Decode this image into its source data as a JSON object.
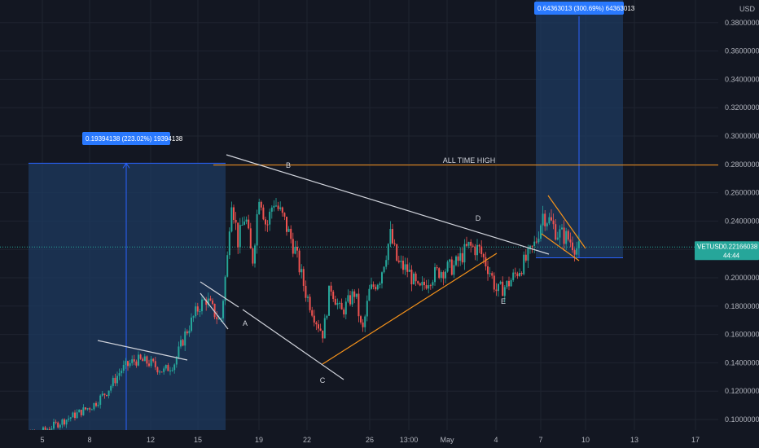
{
  "chart_data": {
    "type": "candlestick",
    "symbol": "VETUSD",
    "currency": "USD",
    "countdown": "44:44",
    "last_price": 0.22166038,
    "ylim": [
      0.08,
      0.38
    ],
    "x_ticks": [
      "5",
      "8",
      "12",
      "15",
      "19",
      "22",
      "26",
      "13:00",
      "May",
      "4",
      "7",
      "10",
      "13",
      "17"
    ],
    "y_ticks": [
      {
        "value": 0.1,
        "label": "0.10000000"
      },
      {
        "value": 0.12,
        "label": "0.12000000"
      },
      {
        "value": 0.14,
        "label": "0.14000000"
      },
      {
        "value": 0.16,
        "label": "0.16000000"
      },
      {
        "value": 0.18,
        "label": "0.18000000"
      },
      {
        "value": 0.2,
        "label": "0.20000000"
      },
      {
        "value": 0.22,
        "label": "0.22000000"
      },
      {
        "value": 0.24,
        "label": "0.24000000"
      },
      {
        "value": 0.26,
        "label": "0.26000000"
      },
      {
        "value": 0.28,
        "label": "0.28000000"
      },
      {
        "value": 0.3,
        "label": "0.30000000"
      },
      {
        "value": 0.32,
        "label": "0.32000000"
      },
      {
        "value": 0.34,
        "label": "0.34000000"
      },
      {
        "value": 0.36,
        "label": "0.36000000"
      },
      {
        "value": 0.38,
        "label": "0.38000000"
      }
    ],
    "price_path": [
      [
        0.0,
        0.086
      ],
      [
        0.03,
        0.088
      ],
      [
        0.06,
        0.092
      ],
      [
        0.1,
        0.102
      ],
      [
        0.13,
        0.11
      ],
      [
        0.15,
        0.12
      ],
      [
        0.17,
        0.135
      ],
      [
        0.19,
        0.142
      ],
      [
        0.21,
        0.14
      ],
      [
        0.23,
        0.134
      ],
      [
        0.245,
        0.14
      ],
      [
        0.26,
        0.16
      ],
      [
        0.28,
        0.18
      ],
      [
        0.29,
        0.185
      ],
      [
        0.31,
        0.168
      ],
      [
        0.32,
        0.215
      ],
      [
        0.325,
        0.26
      ],
      [
        0.335,
        0.225
      ],
      [
        0.345,
        0.245
      ],
      [
        0.355,
        0.21
      ],
      [
        0.365,
        0.262
      ],
      [
        0.375,
        0.235
      ],
      [
        0.385,
        0.255
      ],
      [
        0.4,
        0.24
      ],
      [
        0.415,
        0.22
      ],
      [
        0.43,
        0.19
      ],
      [
        0.445,
        0.17
      ],
      [
        0.455,
        0.16
      ],
      [
        0.465,
        0.195
      ],
      [
        0.48,
        0.175
      ],
      [
        0.5,
        0.19
      ],
      [
        0.51,
        0.16
      ],
      [
        0.52,
        0.19
      ],
      [
        0.535,
        0.2
      ],
      [
        0.55,
        0.23
      ],
      [
        0.56,
        0.21
      ],
      [
        0.575,
        0.205
      ],
      [
        0.59,
        0.19
      ],
      [
        0.605,
        0.2
      ],
      [
        0.62,
        0.205
      ],
      [
        0.64,
        0.208
      ],
      [
        0.66,
        0.222
      ],
      [
        0.675,
        0.22
      ],
      [
        0.69,
        0.205
      ],
      [
        0.7,
        0.19
      ],
      [
        0.715,
        0.195
      ],
      [
        0.73,
        0.205
      ],
      [
        0.745,
        0.215
      ],
      [
        0.755,
        0.225
      ],
      [
        0.765,
        0.245
      ],
      [
        0.775,
        0.24
      ],
      [
        0.785,
        0.232
      ],
      [
        0.8,
        0.228
      ],
      [
        0.815,
        0.22
      ]
    ],
    "annotations": [
      {
        "text": "A",
        "date_pos": 0.345,
        "price": 0.1575
      },
      {
        "text": "B",
        "date_pos": 0.405,
        "price": 0.263
      },
      {
        "text": "C",
        "date_pos": 0.455,
        "price": 0.1225
      },
      {
        "text": "D",
        "date_pos": 0.675,
        "price": 0.238
      },
      {
        "text": "E",
        "date_pos": 0.71,
        "price": 0.1835
      },
      {
        "text": "ALL TIME HIGH",
        "date_pos": 0.66,
        "price": 0.2755
      }
    ],
    "all_time_high": 0.2795,
    "measurements": [
      {
        "label": "0.19394138 (223.02%) 19394138",
        "from": 0.0868,
        "to": 0.2808
      },
      {
        "label": "0.64363013 (300.69%) 64363013",
        "from": 0.2141,
        "to": 0.38
      }
    ],
    "colors": {
      "background": "#131722",
      "up": "#26a69a",
      "down": "#ef5350",
      "trendline": "#d1d4dc",
      "orange": "#f7931a",
      "measure_fill": "#1e3a5f",
      "measure_line": "#2962ff",
      "label_bg": "#2979ff",
      "price_label_bg": "#26a69a"
    }
  }
}
